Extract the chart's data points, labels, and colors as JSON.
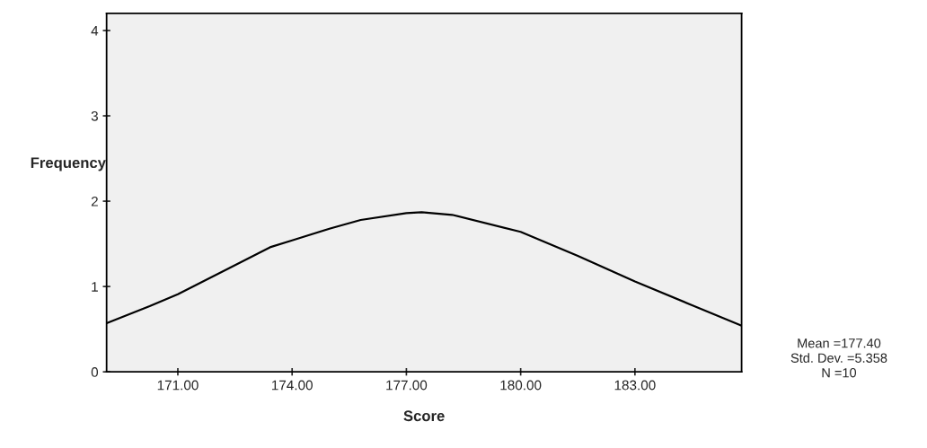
{
  "chart_data": {
    "type": "line",
    "xlabel": "Score",
    "ylabel": "Frequency",
    "x": [
      169.13,
      170.26,
      171,
      172.24,
      173.42,
      174,
      175.0,
      175.8,
      177,
      177.4,
      178.2,
      180,
      181.5,
      183,
      184.5,
      185.8
    ],
    "series": [
      {
        "color": "#000000",
        "values": [
          0.57,
          0.77,
          0.91,
          1.19,
          1.46,
          1.54,
          1.68,
          1.78,
          1.86,
          1.87,
          1.84,
          1.64,
          1.36,
          1.06,
          0.78,
          0.54
        ]
      }
    ],
    "xlim": [
      169.13,
      185.8
    ],
    "xticks": [
      {
        "value": 171,
        "label": "171.00"
      },
      {
        "value": 174,
        "label": "174.00"
      },
      {
        "value": 177,
        "label": "177.00"
      },
      {
        "value": 180,
        "label": "180.00"
      },
      {
        "value": 183,
        "label": "183.00"
      }
    ],
    "ylim": [
      0,
      4.2
    ],
    "yticks": [
      0,
      1,
      2,
      3,
      4
    ],
    "grid": false,
    "legend": false,
    "marker": "none",
    "line_style": "solid",
    "annotations": [
      "Mean =177.40",
      "Std. Dev. =5.358",
      "N =10"
    ]
  }
}
